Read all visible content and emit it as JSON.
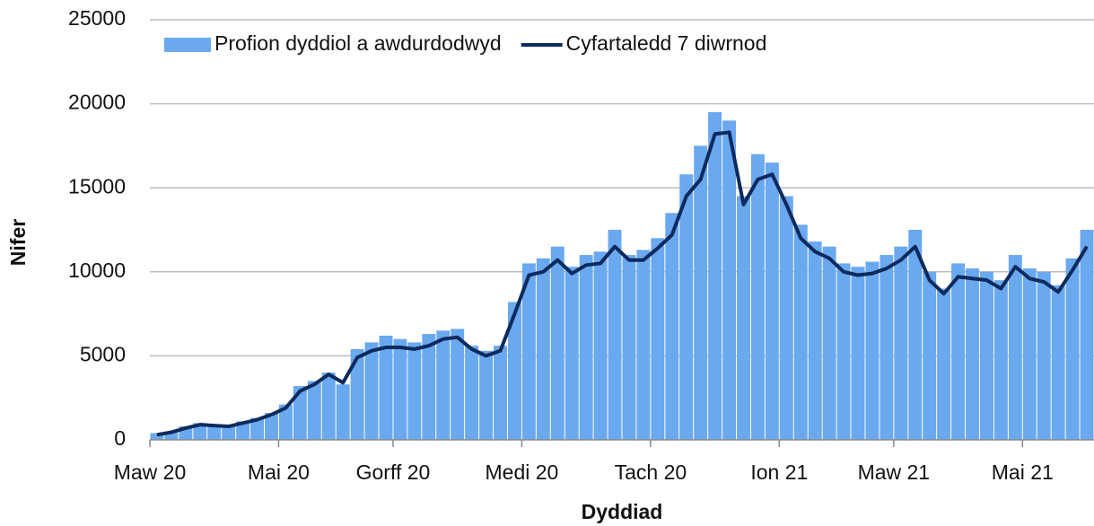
{
  "chart_data": {
    "type": "bar_line",
    "x_label": "Dyddiad",
    "y_label": "Nifer",
    "categories": [
      "Maw 20",
      null,
      null,
      null,
      null,
      null,
      null,
      null,
      null,
      "Mai 20",
      null,
      null,
      null,
      null,
      null,
      null,
      null,
      "Gorff 20",
      null,
      null,
      null,
      null,
      null,
      null,
      null,
      null,
      "Medi 20",
      null,
      null,
      null,
      null,
      null,
      null,
      null,
      null,
      "Tach 20",
      null,
      null,
      null,
      null,
      null,
      null,
      null,
      null,
      "Ion 21",
      null,
      null,
      null,
      null,
      null,
      null,
      null,
      "Maw 21",
      null,
      null,
      null,
      null,
      null,
      null,
      null,
      null,
      "Mai 21",
      null,
      null,
      null,
      null
    ],
    "series": [
      {
        "name": "Profion dyddiol a awdurdodwyd",
        "kind": "bar",
        "color": "#6aa8f0",
        "values": [
          400,
          500,
          800,
          1000,
          900,
          900,
          1100,
          1300,
          1600,
          2100,
          3200,
          3500,
          4000,
          3300,
          5400,
          5800,
          6200,
          6000,
          5800,
          6300,
          6500,
          6600,
          5600,
          5300,
          5600,
          8200,
          10500,
          10800,
          11500,
          10300,
          11000,
          11200,
          12500,
          11000,
          11300,
          12000,
          13500,
          15800,
          17500,
          19500,
          19000,
          14500,
          17000,
          16500,
          14500,
          12800,
          11800,
          11500,
          10500,
          10300,
          10600,
          11000,
          11500,
          12500,
          10000,
          9000,
          10500,
          10200,
          10000,
          9500,
          11000,
          10200,
          10000,
          9200,
          10800,
          12500
        ]
      },
      {
        "name": "Cyfartaledd 7 diwrnod",
        "kind": "line",
        "color": "#0b2a5e",
        "values": [
          300,
          450,
          700,
          900,
          850,
          800,
          1000,
          1200,
          1500,
          1900,
          2900,
          3300,
          3900,
          3400,
          4900,
          5300,
          5500,
          5500,
          5400,
          5600,
          6000,
          6100,
          5400,
          5000,
          5300,
          7500,
          9800,
          10000,
          10700,
          9900,
          10400,
          10500,
          11500,
          10700,
          10700,
          11400,
          12200,
          14500,
          15500,
          18200,
          18300,
          14000,
          15500,
          15800,
          14000,
          12000,
          11200,
          10800,
          10000,
          9800,
          9900,
          10200,
          10700,
          11500,
          9500,
          8700,
          9700,
          9600,
          9500,
          9000,
          10300,
          9600,
          9400,
          8800,
          10100,
          11500
        ]
      }
    ],
    "ylim": [
      0,
      25000
    ],
    "yticks": [
      0,
      5000,
      10000,
      15000,
      20000,
      25000
    ],
    "grid": true,
    "legend": "top"
  }
}
